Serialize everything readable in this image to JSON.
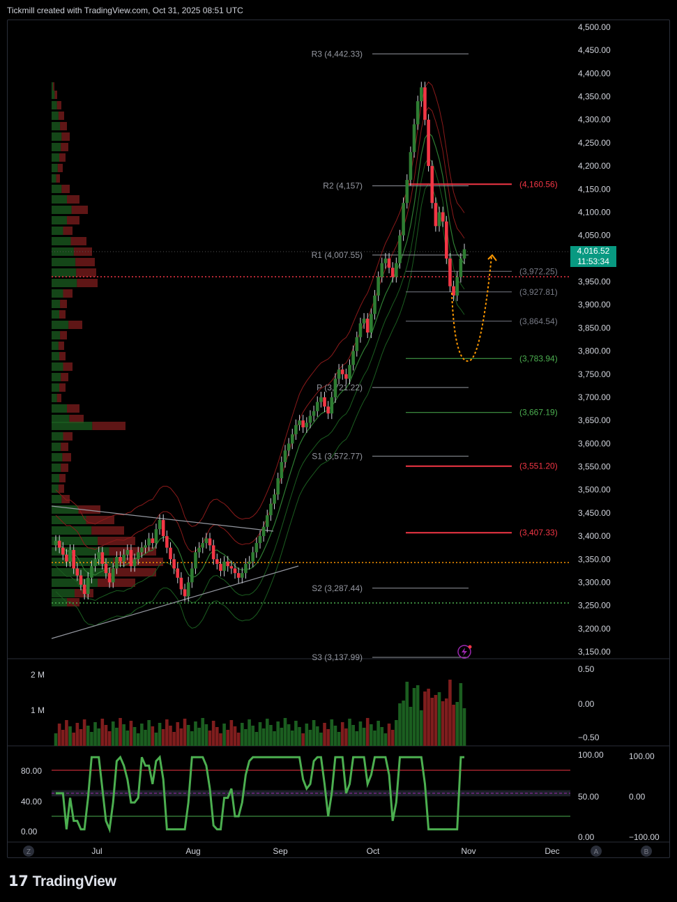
{
  "header": {
    "title": "Tickmill created with TradingView.com, Oct 31, 2025 08:51 UTC"
  },
  "brand": {
    "name": "TradingView",
    "logo": "tv-logo-icon"
  },
  "price_badge": {
    "price": "4,016.52",
    "countdown": "11:53:34"
  },
  "colors": {
    "up": "#2e7d32",
    "down": "#f23645",
    "grid": "#1e222d",
    "axis_text": "#d1d4dc",
    "orange": "#ff9800",
    "accent_green": "#089981"
  },
  "chart_data": [
    {
      "type": "candlestick",
      "title": "",
      "y_ticks": [
        "4,500.00",
        "4,450.00",
        "4,400.00",
        "4,350.00",
        "4,300.00",
        "4,250.00",
        "4,200.00",
        "4,150.00",
        "4,100.00",
        "4,050.00",
        "4,000.00",
        "3,950.00",
        "3,900.00",
        "3,850.00",
        "3,800.00",
        "3,750.00",
        "3,700.00",
        "3,650.00",
        "3,600.00",
        "3,550.00",
        "3,500.00",
        "3,450.00",
        "3,400.00",
        "3,350.00",
        "3,300.00",
        "3,250.00",
        "3,200.00",
        "3,150.00"
      ],
      "ylim": [
        3150,
        4500
      ],
      "x_ticks": [
        "Jul",
        "Aug",
        "Sep",
        "Oct",
        "Nov",
        "Dec"
      ],
      "pivots": [
        {
          "label": "R3 (4,442.33)",
          "value": 4442.33
        },
        {
          "label": "R2 (4,157)",
          "value": 4157
        },
        {
          "label": "R1 (4,007.55)",
          "value": 4007.55
        },
        {
          "label": "P (3,721.22)",
          "value": 3721.22
        },
        {
          "label": "S1 (3,572.77)",
          "value": 3572.77
        },
        {
          "label": "S2 (3,287.44)",
          "value": 3287.44
        },
        {
          "label": "S3 (3,137.99)",
          "value": 3137.99
        }
      ],
      "levels": [
        {
          "label": "(4,160.56)",
          "value": 4160.56,
          "color": "#f23645"
        },
        {
          "label": "(3,972.25)",
          "value": 3972.25,
          "color": "#787b86"
        },
        {
          "label": "(3,927.81)",
          "value": 3927.81,
          "color": "#787b86"
        },
        {
          "label": "(3,864.54)",
          "value": 3864.54,
          "color": "#787b86"
        },
        {
          "label": "(3,783.94)",
          "value": 3783.94,
          "color": "#4caf50"
        },
        {
          "label": "(3,667.19)",
          "value": 3667.19,
          "color": "#4caf50"
        },
        {
          "label": "(3,551.20)",
          "value": 3551.2,
          "color": "#f23645"
        },
        {
          "label": "(3,407.33)",
          "value": 3407.33,
          "color": "#f23645"
        }
      ],
      "close_series": [
        3390,
        3375,
        3360,
        3345,
        3370,
        3330,
        3315,
        3295,
        3275,
        3310,
        3335,
        3350,
        3365,
        3340,
        3320,
        3300,
        3330,
        3355,
        3345,
        3360,
        3370,
        3335,
        3350,
        3365,
        3375,
        3380,
        3395,
        3385,
        3415,
        3435,
        3400,
        3375,
        3350,
        3330,
        3310,
        3285,
        3270,
        3300,
        3330,
        3365,
        3375,
        3385,
        3395,
        3380,
        3350,
        3340,
        3325,
        3345,
        3335,
        3330,
        3320,
        3310,
        3320,
        3340,
        3345,
        3365,
        3385,
        3400,
        3420,
        3445,
        3470,
        3490,
        3525,
        3560,
        3585,
        3600,
        3620,
        3640,
        3650,
        3635,
        3645,
        3660,
        3670,
        3690,
        3700,
        3680,
        3665,
        3700,
        3740,
        3760,
        3750,
        3740,
        3770,
        3800,
        3830,
        3860,
        3870,
        3840,
        3880,
        3920,
        3960,
        3990,
        4000,
        3980,
        3960,
        3990,
        4050,
        4120,
        4170,
        4230,
        4290,
        4340,
        4370,
        4300,
        4200,
        4120,
        4070,
        4100,
        4080,
        4000,
        3940,
        3920,
        3960,
        4000,
        4020
      ],
      "volume_ticks": [
        "2 M",
        "1 M"
      ],
      "macd_ticks": [
        "0.50",
        "0.00",
        "−0.50"
      ],
      "osc_left_ticks": [
        "80.00",
        "40.00",
        "0.00"
      ],
      "osc_right_ticks": [
        "100.00",
        "50.00",
        "0.00"
      ],
      "osc_far_ticks": [
        "100.00",
        "0.00",
        "−100.00"
      ],
      "scale_labels": [
        "Z",
        "A",
        "B"
      ]
    }
  ]
}
